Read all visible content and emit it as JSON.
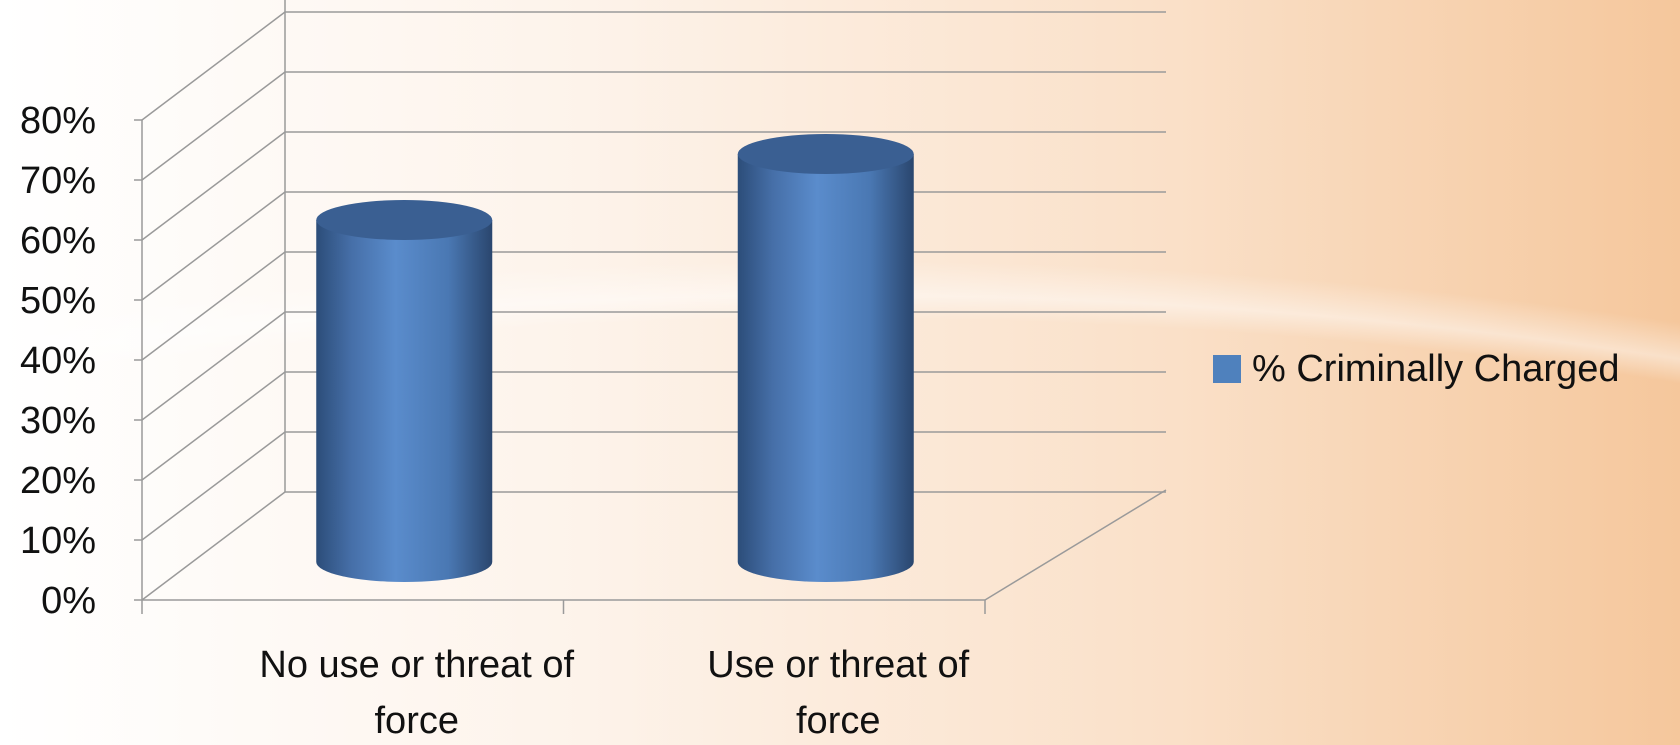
{
  "chart_data": {
    "type": "bar",
    "style": "3d-cylinder",
    "categories": [
      "No use or threat of force",
      "Use or threat of force"
    ],
    "category_lines": [
      [
        "No use or threat of",
        "force"
      ],
      [
        "Use or threat of",
        "force"
      ]
    ],
    "series": [
      {
        "name": "% Criminally Charged",
        "values": [
          57,
          68
        ],
        "color": "#4f81bd"
      }
    ],
    "yticks": [
      "0%",
      "10%",
      "20%",
      "30%",
      "40%",
      "50%",
      "60%",
      "70%",
      "80%"
    ],
    "ylim": [
      0,
      80
    ],
    "grid": true,
    "legend": "right"
  },
  "colors": {
    "bar": "#4f81bd",
    "bar_dark": "#2c4d79",
    "bar_top": "#3a5f92",
    "grid": "#9a9a9a",
    "text": "#111111"
  }
}
